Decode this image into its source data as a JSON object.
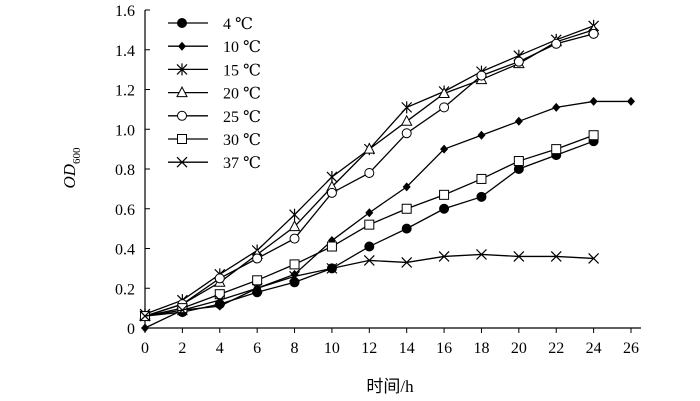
{
  "chart_data": {
    "type": "line",
    "title": "",
    "xlabel": "时间/h",
    "ylabel": {
      "main": "OD",
      "sub": "600"
    },
    "xlim": [
      0,
      26
    ],
    "ylim": [
      0,
      1.6
    ],
    "x_ticks": [
      0,
      2,
      4,
      6,
      8,
      10,
      12,
      14,
      16,
      18,
      20,
      22,
      24,
      26
    ],
    "x_tick_labels": [
      "0",
      "2",
      "4",
      "6",
      "8",
      "10",
      "12",
      "14",
      "16",
      "18",
      "20",
      "22",
      "24",
      "26"
    ],
    "y_ticks": [
      0,
      0.2,
      0.4,
      0.6,
      0.8,
      1.0,
      1.2,
      1.4,
      1.6
    ],
    "y_tick_labels": [
      "0",
      "0.2",
      "0.4",
      "0.6",
      "0.8",
      "1.0",
      "1.2",
      "1.4",
      "1.6"
    ],
    "grid": false,
    "legend_position": "top-left",
    "series": [
      {
        "name": "4 ℃",
        "marker": "circle-filled",
        "x": [
          0,
          2,
          4,
          6,
          8,
          10,
          12,
          14,
          16,
          18,
          20,
          22,
          24
        ],
        "values": [
          0.06,
          0.08,
          0.12,
          0.18,
          0.23,
          0.3,
          0.41,
          0.5,
          0.6,
          0.66,
          0.8,
          0.87,
          0.94
        ]
      },
      {
        "name": "10 ℃",
        "marker": "diamond-filled",
        "x": [
          0,
          2,
          4,
          6,
          8,
          10,
          12,
          14,
          16,
          18,
          20,
          22,
          24,
          26
        ],
        "values": [
          0.0,
          0.09,
          0.11,
          0.2,
          0.27,
          0.44,
          0.58,
          0.71,
          0.9,
          0.97,
          1.04,
          1.11,
          1.14,
          1.14
        ]
      },
      {
        "name": "15 ℃",
        "marker": "asterisk",
        "x": [
          0,
          2,
          4,
          6,
          8,
          10,
          12,
          14,
          16,
          18,
          20,
          22,
          24
        ],
        "values": [
          0.07,
          0.14,
          0.27,
          0.39,
          0.57,
          0.76,
          0.9,
          1.11,
          1.19,
          1.29,
          1.37,
          1.45,
          1.52
        ]
      },
      {
        "name": "20 ℃",
        "marker": "triangle-open",
        "x": [
          0,
          2,
          4,
          6,
          8,
          10,
          12,
          14,
          16,
          18,
          20,
          22,
          24
        ],
        "values": [
          0.06,
          0.12,
          0.23,
          0.37,
          0.51,
          0.71,
          0.9,
          1.04,
          1.18,
          1.25,
          1.33,
          1.44,
          1.5
        ]
      },
      {
        "name": "25 ℃",
        "marker": "circle-open",
        "x": [
          0,
          2,
          4,
          6,
          8,
          10,
          12,
          14,
          16,
          18,
          20,
          22,
          24
        ],
        "values": [
          0.06,
          0.12,
          0.25,
          0.35,
          0.45,
          0.68,
          0.78,
          0.98,
          1.11,
          1.27,
          1.34,
          1.43,
          1.48
        ]
      },
      {
        "name": "30 ℃",
        "marker": "square-open",
        "x": [
          0,
          2,
          4,
          6,
          8,
          10,
          12,
          14,
          16,
          18,
          20,
          22,
          24
        ],
        "values": [
          0.06,
          0.1,
          0.17,
          0.24,
          0.32,
          0.41,
          0.52,
          0.6,
          0.67,
          0.75,
          0.84,
          0.9,
          0.97
        ]
      },
      {
        "name": "37 ℃",
        "marker": "x",
        "x": [
          0,
          2,
          4,
          6,
          8,
          10,
          12,
          14,
          16,
          18,
          20,
          22,
          24
        ],
        "values": [
          0.06,
          0.09,
          0.14,
          0.2,
          0.26,
          0.3,
          0.34,
          0.33,
          0.36,
          0.37,
          0.36,
          0.36,
          0.35
        ]
      }
    ]
  }
}
